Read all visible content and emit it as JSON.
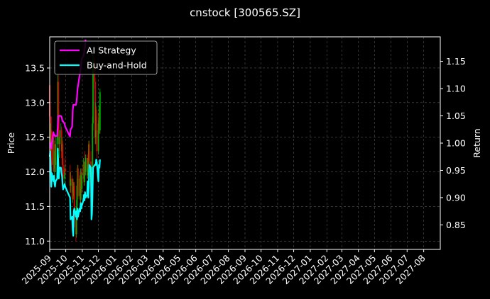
{
  "chart_data": {
    "type": "line",
    "title": "cnstock [300565.SZ]",
    "ylabel": "Price",
    "y2label": "Return",
    "ylim": [
      10.88,
      13.95
    ],
    "y2lim": [
      0.805,
      1.195
    ],
    "xlim": [
      "2025-09-01",
      "2027-09-01"
    ],
    "grid": true,
    "legend_position": "top-left",
    "x_tick_labels": [
      "2025-09",
      "2025-10",
      "2025-11",
      "2025-12",
      "2026-01",
      "2026-02",
      "2026-03",
      "2026-04",
      "2026-05",
      "2026-06",
      "2026-07",
      "2026-08",
      "2026-09",
      "2026-10",
      "2026-11",
      "2026-12",
      "2027-01",
      "2027-02",
      "2027-03",
      "2027-04",
      "2027-05",
      "2027-06",
      "2027-07",
      "2027-08"
    ],
    "y_ticks": [
      11.0,
      11.5,
      12.0,
      12.5,
      13.0,
      13.5
    ],
    "y_tick_labels": [
      "11.0",
      "11.5",
      "12.0",
      "12.5",
      "13.0",
      "13.5"
    ],
    "y2_ticks": [
      0.85,
      0.9,
      0.95,
      1.0,
      1.05,
      1.1,
      1.15
    ],
    "y2_tick_labels": [
      "0.85",
      "0.90",
      "0.95",
      "1.00",
      "1.05",
      "1.10",
      "1.15"
    ],
    "colors": {
      "up": "#00b000",
      "down": "#e00000",
      "ai": "#ff00ff",
      "bh": "#00ffff",
      "grid": "#555555"
    },
    "price_candles": [
      {
        "date": "2025-09-01",
        "o": 13.25,
        "h": 13.3,
        "l": 12.7,
        "c": 12.8
      },
      {
        "date": "2025-09-02",
        "o": 12.8,
        "h": 12.95,
        "l": 12.2,
        "c": 12.35
      },
      {
        "date": "2025-09-03",
        "o": 12.35,
        "h": 12.7,
        "l": 12.1,
        "c": 12.6
      },
      {
        "date": "2025-09-04",
        "o": 12.6,
        "h": 12.8,
        "l": 12.3,
        "c": 12.4
      },
      {
        "date": "2025-09-05",
        "o": 12.4,
        "h": 12.6,
        "l": 12.0,
        "c": 12.1
      },
      {
        "date": "2025-09-08",
        "o": 12.1,
        "h": 12.5,
        "l": 12.0,
        "c": 12.45
      },
      {
        "date": "2025-09-09",
        "o": 12.45,
        "h": 12.55,
        "l": 12.0,
        "c": 12.05
      },
      {
        "date": "2025-09-10",
        "o": 12.05,
        "h": 12.3,
        "l": 11.85,
        "c": 12.2
      },
      {
        "date": "2025-09-11",
        "o": 12.2,
        "h": 12.4,
        "l": 12.0,
        "c": 12.1
      },
      {
        "date": "2025-09-12",
        "o": 12.1,
        "h": 12.5,
        "l": 12.0,
        "c": 12.4
      },
      {
        "date": "2025-09-15",
        "o": 12.4,
        "h": 12.6,
        "l": 12.3,
        "c": 12.5
      },
      {
        "date": "2025-09-16",
        "o": 12.5,
        "h": 13.4,
        "l": 12.45,
        "c": 13.3
      },
      {
        "date": "2025-09-17",
        "o": 13.3,
        "h": 13.4,
        "l": 12.7,
        "c": 12.8
      },
      {
        "date": "2025-09-18",
        "o": 12.8,
        "h": 12.9,
        "l": 12.3,
        "c": 12.4
      },
      {
        "date": "2025-09-19",
        "o": 12.4,
        "h": 12.6,
        "l": 12.2,
        "c": 12.5
      },
      {
        "date": "2025-09-22",
        "o": 12.5,
        "h": 12.7,
        "l": 12.4,
        "c": 12.6
      },
      {
        "date": "2025-09-23",
        "o": 12.6,
        "h": 12.65,
        "l": 12.2,
        "c": 12.3
      },
      {
        "date": "2025-09-24",
        "o": 12.3,
        "h": 12.5,
        "l": 12.1,
        "c": 12.4
      },
      {
        "date": "2025-09-25",
        "o": 12.4,
        "h": 12.45,
        "l": 12.0,
        "c": 12.1
      },
      {
        "date": "2025-09-26",
        "o": 12.1,
        "h": 12.2,
        "l": 11.8,
        "c": 11.9
      },
      {
        "date": "2025-09-29",
        "o": 11.9,
        "h": 12.1,
        "l": 11.8,
        "c": 12.05
      },
      {
        "date": "2025-09-30",
        "o": 12.05,
        "h": 12.2,
        "l": 11.95,
        "c": 12.0
      },
      {
        "date": "2025-10-09",
        "o": 12.0,
        "h": 12.1,
        "l": 11.7,
        "c": 11.8
      },
      {
        "date": "2025-10-10",
        "o": 11.8,
        "h": 12.0,
        "l": 11.7,
        "c": 11.9
      },
      {
        "date": "2025-10-13",
        "o": 11.9,
        "h": 11.95,
        "l": 11.6,
        "c": 11.7
      },
      {
        "date": "2025-10-14",
        "o": 11.7,
        "h": 11.9,
        "l": 11.55,
        "c": 11.85
      },
      {
        "date": "2025-10-15",
        "o": 11.85,
        "h": 11.9,
        "l": 11.6,
        "c": 11.65
      },
      {
        "date": "2025-10-16",
        "o": 11.65,
        "h": 11.85,
        "l": 11.6,
        "c": 11.8
      },
      {
        "date": "2025-10-17",
        "o": 11.8,
        "h": 11.85,
        "l": 11.2,
        "c": 11.3
      },
      {
        "date": "2025-10-20",
        "o": 11.3,
        "h": 11.4,
        "l": 11.0,
        "c": 11.1
      },
      {
        "date": "2025-10-21",
        "o": 11.1,
        "h": 11.6,
        "l": 11.05,
        "c": 11.5
      },
      {
        "date": "2025-10-22",
        "o": 11.5,
        "h": 11.9,
        "l": 11.45,
        "c": 11.8
      },
      {
        "date": "2025-10-23",
        "o": 11.8,
        "h": 12.1,
        "l": 11.7,
        "c": 12.05
      },
      {
        "date": "2025-10-24",
        "o": 12.05,
        "h": 12.1,
        "l": 11.6,
        "c": 11.65
      },
      {
        "date": "2025-10-27",
        "o": 11.65,
        "h": 11.95,
        "l": 11.6,
        "c": 11.9
      },
      {
        "date": "2025-10-28",
        "o": 11.9,
        "h": 12.0,
        "l": 11.55,
        "c": 11.6
      },
      {
        "date": "2025-10-29",
        "o": 11.6,
        "h": 12.05,
        "l": 11.55,
        "c": 12.0
      },
      {
        "date": "2025-10-30",
        "o": 12.0,
        "h": 12.05,
        "l": 11.7,
        "c": 11.75
      },
      {
        "date": "2025-10-31",
        "o": 11.75,
        "h": 12.0,
        "l": 11.7,
        "c": 11.95
      },
      {
        "date": "2025-11-03",
        "o": 11.95,
        "h": 12.2,
        "l": 11.9,
        "c": 12.1
      },
      {
        "date": "2025-11-04",
        "o": 12.1,
        "h": 12.15,
        "l": 11.8,
        "c": 11.85
      },
      {
        "date": "2025-11-05",
        "o": 11.85,
        "h": 12.15,
        "l": 11.8,
        "c": 12.1
      },
      {
        "date": "2025-11-06",
        "o": 12.1,
        "h": 12.3,
        "l": 11.95,
        "c": 12.0
      },
      {
        "date": "2025-11-07",
        "o": 12.0,
        "h": 12.25,
        "l": 11.95,
        "c": 12.2
      },
      {
        "date": "2025-11-10",
        "o": 12.2,
        "h": 12.25,
        "l": 11.9,
        "c": 11.95
      },
      {
        "date": "2025-11-11",
        "o": 11.95,
        "h": 12.2,
        "l": 11.9,
        "c": 12.15
      },
      {
        "date": "2025-11-12",
        "o": 12.15,
        "h": 12.3,
        "l": 12.05,
        "c": 12.1
      },
      {
        "date": "2025-11-13",
        "o": 12.1,
        "h": 12.45,
        "l": 12.05,
        "c": 12.4
      },
      {
        "date": "2025-11-14",
        "o": 12.4,
        "h": 12.45,
        "l": 12.1,
        "c": 12.15
      },
      {
        "date": "2025-11-17",
        "o": 12.15,
        "h": 12.3,
        "l": 11.9,
        "c": 11.95
      },
      {
        "date": "2025-11-18",
        "o": 11.95,
        "h": 12.0,
        "l": 11.45,
        "c": 11.5
      },
      {
        "date": "2025-11-19",
        "o": 11.5,
        "h": 12.0,
        "l": 11.45,
        "c": 11.95
      },
      {
        "date": "2025-11-20",
        "o": 11.95,
        "h": 12.8,
        "l": 11.9,
        "c": 12.7
      },
      {
        "date": "2025-11-21",
        "o": 12.7,
        "h": 13.7,
        "l": 12.6,
        "c": 13.6
      },
      {
        "date": "2025-11-24",
        "o": 13.6,
        "h": 13.65,
        "l": 13.2,
        "c": 13.3
      },
      {
        "date": "2025-11-25",
        "o": 13.3,
        "h": 13.35,
        "l": 12.4,
        "c": 12.5
      },
      {
        "date": "2025-11-26",
        "o": 12.5,
        "h": 13.0,
        "l": 12.4,
        "c": 12.9
      },
      {
        "date": "2025-11-27",
        "o": 12.9,
        "h": 12.95,
        "l": 12.5,
        "c": 12.6
      },
      {
        "date": "2025-11-28",
        "o": 12.6,
        "h": 12.8,
        "l": 12.2,
        "c": 12.3
      },
      {
        "date": "2025-12-01",
        "o": 12.3,
        "h": 12.75,
        "l": 12.25,
        "c": 12.7
      },
      {
        "date": "2025-12-02",
        "o": 12.7,
        "h": 12.95,
        "l": 12.6,
        "c": 12.85
      },
      {
        "date": "2025-12-03",
        "o": 12.85,
        "h": 12.9,
        "l": 12.55,
        "c": 12.6
      },
      {
        "date": "2025-12-04",
        "o": 12.6,
        "h": 13.2,
        "l": 12.55,
        "c": 13.15
      }
    ],
    "series": [
      {
        "name": "AI Strategy",
        "points": [
          [
            "2025-09-01",
            1.0
          ],
          [
            "2025-09-02",
            1.0
          ],
          [
            "2025-09-03",
            0.995
          ],
          [
            "2025-09-04",
            0.99
          ],
          [
            "2025-09-05",
            1.0
          ],
          [
            "2025-09-08",
            1.02
          ],
          [
            "2025-09-09",
            1.015
          ],
          [
            "2025-09-10",
            1.015
          ],
          [
            "2025-09-11",
            1.013
          ],
          [
            "2025-09-12",
            1.013
          ],
          [
            "2025-09-15",
            1.013
          ],
          [
            "2025-09-16",
            1.03
          ],
          [
            "2025-09-17",
            1.05
          ],
          [
            "2025-09-18",
            1.05
          ],
          [
            "2025-09-19",
            1.05
          ],
          [
            "2025-09-22",
            1.05
          ],
          [
            "2025-09-23",
            1.048
          ],
          [
            "2025-09-24",
            1.045
          ],
          [
            "2025-09-25",
            1.04
          ],
          [
            "2025-09-26",
            1.04
          ],
          [
            "2025-09-29",
            1.035
          ],
          [
            "2025-09-30",
            1.03
          ],
          [
            "2025-10-09",
            1.012
          ],
          [
            "2025-10-10",
            1.025
          ],
          [
            "2025-10-13",
            1.03
          ],
          [
            "2025-10-14",
            1.06
          ],
          [
            "2025-10-15",
            1.07
          ],
          [
            "2025-10-16",
            1.07
          ],
          [
            "2025-10-17",
            1.07
          ],
          [
            "2025-10-20",
            1.07
          ],
          [
            "2025-10-21",
            1.075
          ],
          [
            "2025-10-22",
            1.085
          ],
          [
            "2025-10-23",
            1.1
          ],
          [
            "2025-10-24",
            1.105
          ],
          [
            "2025-10-27",
            1.125
          ],
          [
            "2025-10-28",
            1.13
          ],
          [
            "2025-10-29",
            1.135
          ],
          [
            "2025-10-30",
            1.15
          ],
          [
            "2025-10-31",
            1.155
          ],
          [
            "2025-11-03",
            1.16
          ],
          [
            "2025-11-04",
            1.165
          ],
          [
            "2025-11-05",
            1.17
          ],
          [
            "2025-11-06",
            1.175
          ],
          [
            "2025-11-07",
            1.19
          ]
        ]
      },
      {
        "name": "Buy-and-Hold",
        "points": [
          [
            "2025-09-01",
            0.975
          ],
          [
            "2025-09-02",
            0.985
          ],
          [
            "2025-09-03",
            0.95
          ],
          [
            "2025-09-04",
            0.92
          ],
          [
            "2025-09-05",
            0.945
          ],
          [
            "2025-09-08",
            0.93
          ],
          [
            "2025-09-09",
            0.94
          ],
          [
            "2025-09-10",
            0.925
          ],
          [
            "2025-09-11",
            0.92
          ],
          [
            "2025-09-12",
            0.93
          ],
          [
            "2025-09-15",
            0.935
          ],
          [
            "2025-09-16",
            0.99
          ],
          [
            "2025-09-17",
            0.965
          ],
          [
            "2025-09-18",
            0.935
          ],
          [
            "2025-09-19",
            0.955
          ],
          [
            "2025-09-22",
            0.955
          ],
          [
            "2025-09-23",
            0.945
          ],
          [
            "2025-09-24",
            0.94
          ],
          [
            "2025-09-25",
            0.925
          ],
          [
            "2025-09-26",
            0.915
          ],
          [
            "2025-09-29",
            0.925
          ],
          [
            "2025-09-30",
            0.92
          ],
          [
            "2025-10-09",
            0.9
          ],
          [
            "2025-10-10",
            0.86
          ],
          [
            "2025-10-13",
            0.865
          ],
          [
            "2025-10-14",
            0.84
          ],
          [
            "2025-10-15",
            0.83
          ],
          [
            "2025-10-16",
            0.875
          ],
          [
            "2025-10-17",
            0.88
          ],
          [
            "2025-10-20",
            0.865
          ],
          [
            "2025-10-21",
            0.875
          ],
          [
            "2025-10-22",
            0.86
          ],
          [
            "2025-10-23",
            0.88
          ],
          [
            "2025-10-24",
            0.865
          ],
          [
            "2025-10-27",
            0.88
          ],
          [
            "2025-10-28",
            0.875
          ],
          [
            "2025-10-29",
            0.89
          ],
          [
            "2025-10-30",
            0.88
          ],
          [
            "2025-10-31",
            0.885
          ],
          [
            "2025-11-03",
            0.895
          ],
          [
            "2025-11-04",
            0.905
          ],
          [
            "2025-11-05",
            0.895
          ],
          [
            "2025-11-06",
            0.91
          ],
          [
            "2025-11-07",
            0.9
          ],
          [
            "2025-11-10",
            0.905
          ],
          [
            "2025-11-11",
            0.93
          ],
          [
            "2025-11-12",
            0.9
          ],
          [
            "2025-11-13",
            0.92
          ],
          [
            "2025-11-14",
            0.96
          ],
          [
            "2025-11-17",
            0.955
          ],
          [
            "2025-11-18",
            0.86
          ],
          [
            "2025-11-19",
            0.87
          ],
          [
            "2025-11-20",
            0.905
          ],
          [
            "2025-11-21",
            0.955
          ],
          [
            "2025-11-24",
            0.96
          ],
          [
            "2025-11-25",
            0.96
          ],
          [
            "2025-11-26",
            0.96
          ],
          [
            "2025-11-27",
            0.97
          ],
          [
            "2025-11-28",
            0.965
          ],
          [
            "2025-12-01",
            0.93
          ],
          [
            "2025-12-02",
            0.96
          ],
          [
            "2025-12-03",
            0.955
          ],
          [
            "2025-12-04",
            0.97
          ]
        ]
      }
    ]
  }
}
